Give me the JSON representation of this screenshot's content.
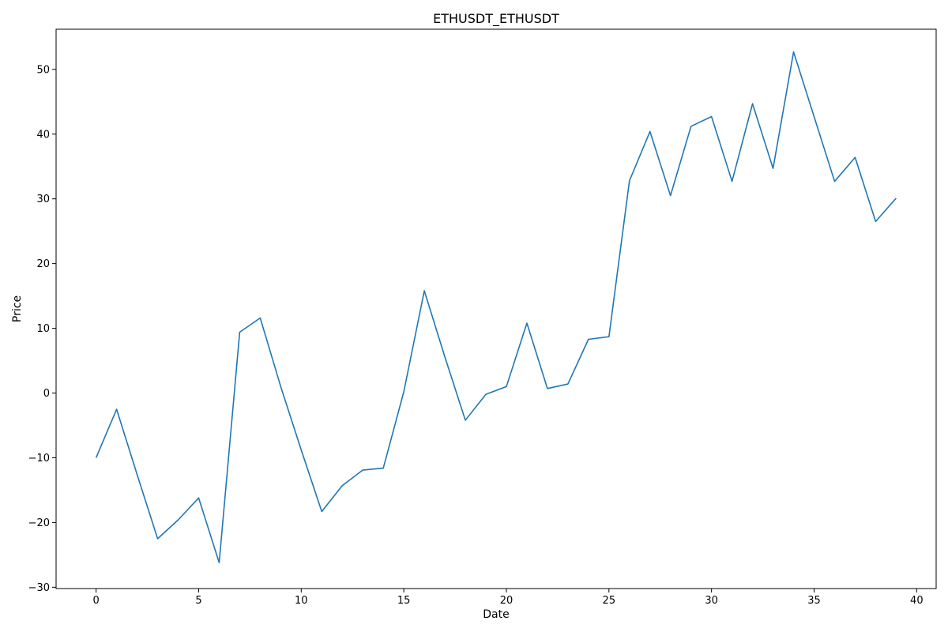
{
  "chart_data": {
    "type": "line",
    "title": "ETHUSDT_ETHUSDT",
    "xlabel": "Date",
    "ylabel": "Price",
    "xlim": [
      -1.95,
      40.95
    ],
    "ylim": [
      -30.2,
      56.2
    ],
    "xticks": [
      0,
      5,
      10,
      15,
      20,
      25,
      30,
      35,
      40
    ],
    "yticks": [
      -30,
      -20,
      -10,
      0,
      10,
      20,
      30,
      40,
      50
    ],
    "grid": false,
    "series": [
      {
        "color": "#1f77b4",
        "x": [
          0,
          1,
          2,
          3,
          4,
          5,
          6,
          7,
          8,
          9,
          10,
          11,
          12,
          13,
          14,
          15,
          16,
          17,
          18,
          19,
          20,
          21,
          22,
          23,
          24,
          25,
          26,
          27,
          28,
          29,
          30,
          31,
          32,
          33,
          34,
          35,
          36,
          37,
          38,
          39
        ],
        "values": [
          -10.0,
          -2.5,
          -12.6,
          -22.5,
          -19.6,
          -16.2,
          -26.2,
          9.4,
          11.6,
          1.0,
          -8.8,
          -18.3,
          -14.3,
          -11.9,
          -11.6,
          0.2,
          15.8,
          5.6,
          -4.2,
          -0.2,
          1.0,
          10.8,
          0.7,
          1.4,
          8.3,
          8.7,
          32.8,
          40.4,
          30.5,
          41.2,
          42.7,
          32.7,
          44.7,
          34.7,
          52.7,
          42.7,
          32.7,
          36.4,
          26.5,
          30.1
        ]
      }
    ]
  }
}
